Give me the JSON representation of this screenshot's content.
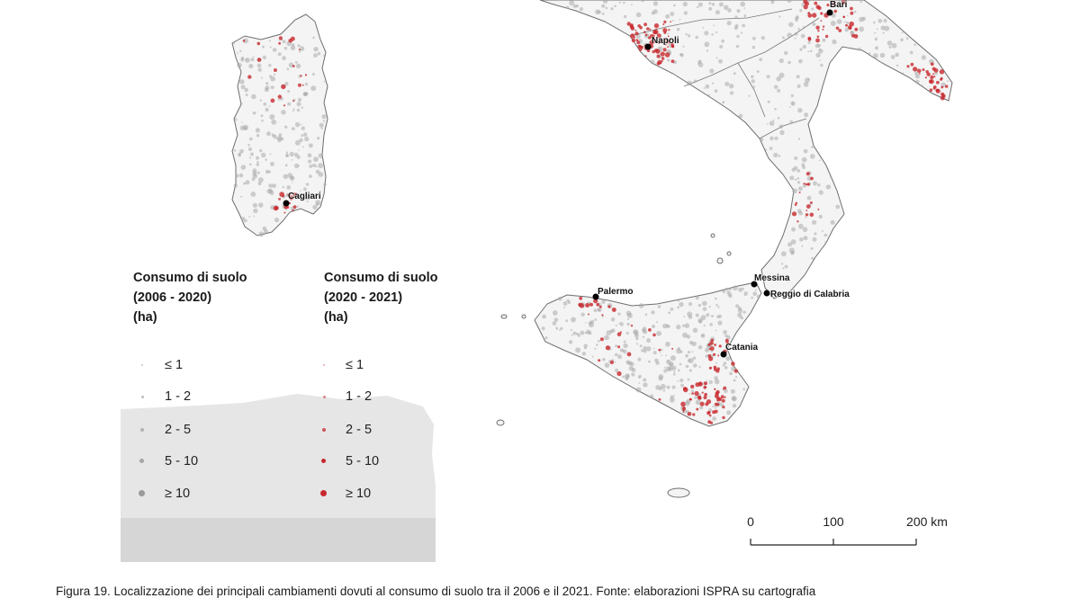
{
  "figure": {
    "caption": "Figura 19. Localizzazione dei principali cambiamenti dovuti al consumo di suolo tra il 2006 e il 2021. Fonte: elaborazioni ISPRA su cartografia"
  },
  "map": {
    "regions": [
      "Sardegna",
      "Italia meridionale",
      "Sicilia"
    ],
    "colors": {
      "land_fill": "#f4f4f4",
      "land_outline": "#6e6e6e",
      "change_2006_2020": "#a9a9a9",
      "change_2020_2021": "#c8282d",
      "city_marker": "#000000",
      "inset_background": "#e6e6e6"
    }
  },
  "cities": [
    {
      "id": "bari",
      "name": "Bari"
    },
    {
      "id": "napoli",
      "name": "Napoli"
    },
    {
      "id": "cagliari",
      "name": "Cagliari"
    },
    {
      "id": "palermo",
      "name": "Palermo"
    },
    {
      "id": "messina",
      "name": "Messina"
    },
    {
      "id": "reggio",
      "name": "Reggio di Calabria"
    },
    {
      "id": "catania",
      "name": "Catania"
    }
  ],
  "legend": {
    "period1": {
      "title_lines": [
        "Consumo di suolo",
        "(2006 - 2020)",
        "(ha)"
      ],
      "color": "#a9a9a9",
      "classes": [
        "≤ 1",
        "1 - 2",
        "2 - 5",
        "5 - 10",
        "≥ 10"
      ]
    },
    "period2": {
      "title_lines": [
        "Consumo di suolo",
        "(2020 - 2021)",
        "(ha)"
      ],
      "color": "#c8282d",
      "classes": [
        "≤ 1",
        "1 - 2",
        "2 - 5",
        "5 - 10",
        "≥ 10"
      ]
    }
  },
  "scale_bar": {
    "labels": [
      "0",
      "100",
      "200 km"
    ],
    "max_km": 200
  }
}
